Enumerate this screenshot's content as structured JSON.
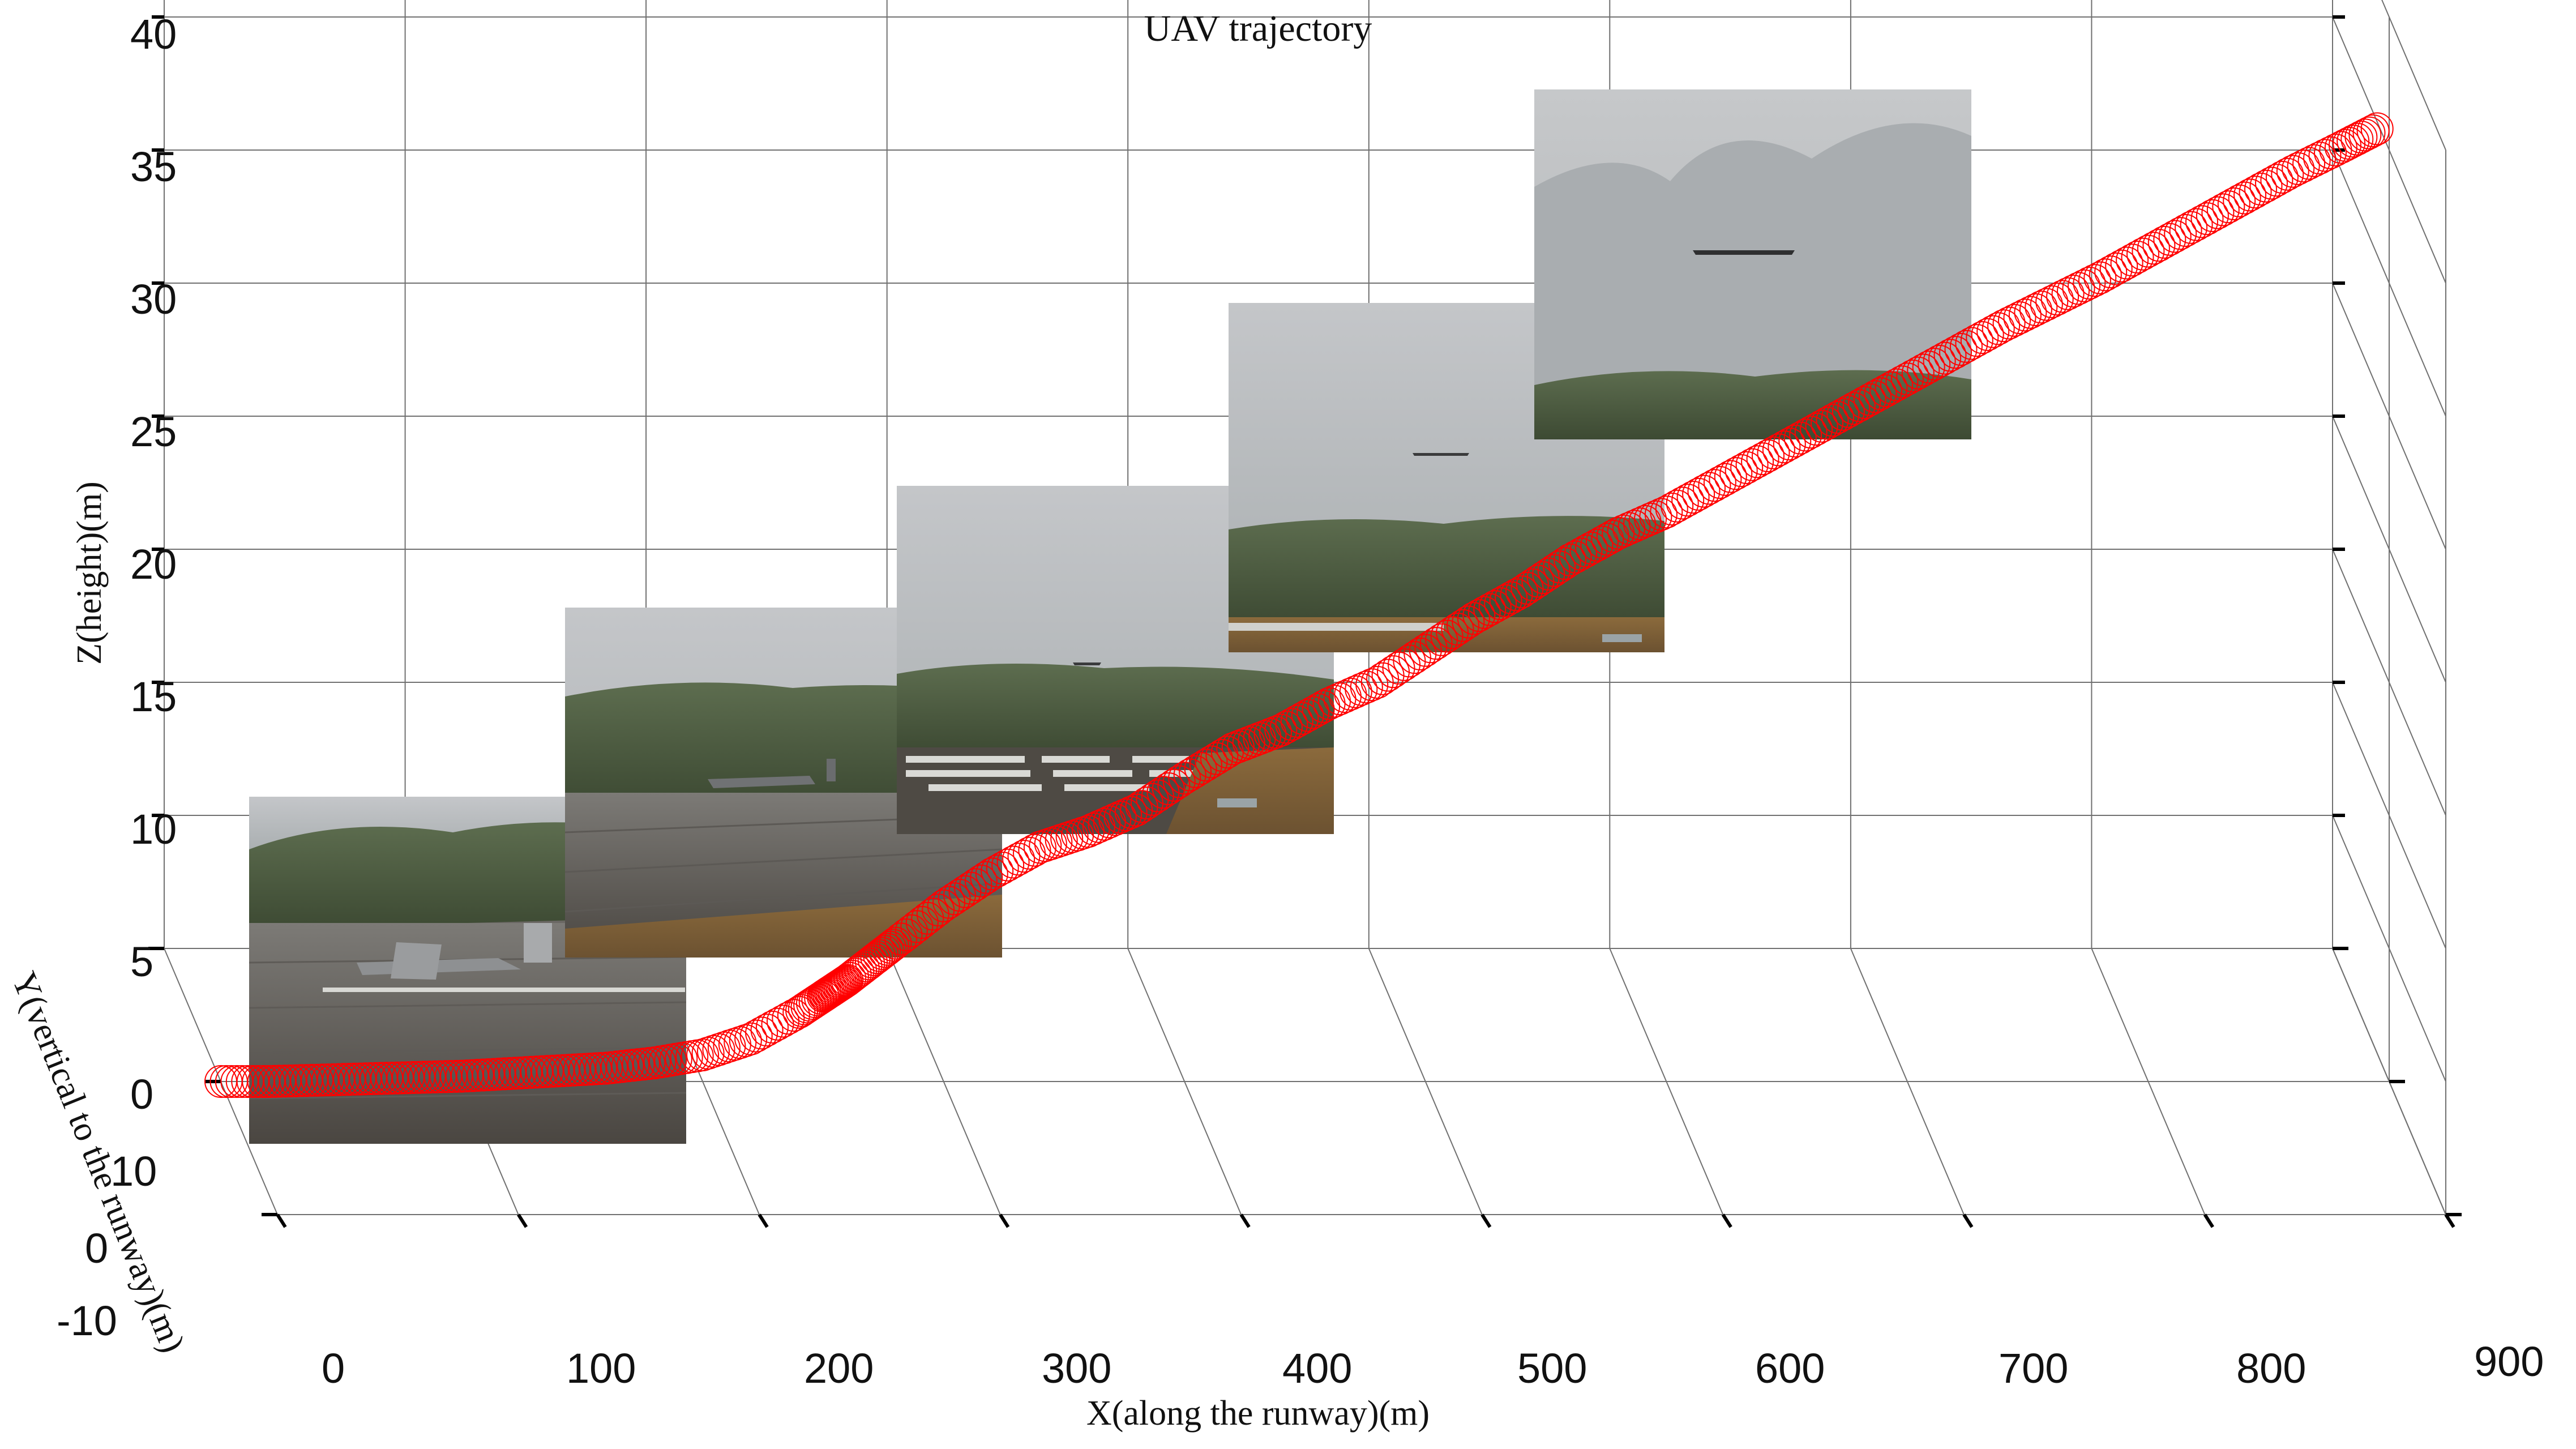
{
  "chart_data": {
    "type": "scatter",
    "projection": "3d",
    "title": "UAV trajectory",
    "xlabel": "X(along the runway)(m)",
    "ylabel": "Y(vertical to the runway)(m)",
    "zlabel": "Z(height)(m)",
    "xlim": [
      0,
      900
    ],
    "ylim": [
      -10,
      10
    ],
    "zlim": [
      0,
      40
    ],
    "x_ticks": [
      "0",
      "100",
      "200",
      "300",
      "400",
      "500",
      "600",
      "700",
      "800",
      "900"
    ],
    "y_ticks": [
      "-10",
      "0",
      "10"
    ],
    "z_ticks": [
      "0",
      "5",
      "10",
      "15",
      "20",
      "25",
      "30",
      "35",
      "40"
    ],
    "grid": true,
    "marker": "circle",
    "marker_color": "#ff0000",
    "series": [
      {
        "x": [
          0,
          20,
          40,
          60,
          80,
          100,
          120,
          140,
          160,
          180,
          200,
          220,
          240,
          250,
          255,
          260,
          270,
          280,
          300,
          320,
          340,
          360,
          380,
          400,
          420,
          440,
          460,
          480,
          500,
          520,
          540,
          560,
          580,
          600,
          620,
          640,
          660,
          680,
          700,
          720,
          740,
          760,
          780,
          800,
          820,
          840,
          860,
          880,
          895
        ],
        "y": [
          0,
          0,
          0,
          0,
          0,
          0,
          0,
          0,
          0,
          0,
          0,
          0,
          0,
          0,
          0,
          0,
          0,
          0,
          0,
          0,
          0,
          0,
          0,
          0,
          0,
          0,
          0,
          0,
          0,
          0,
          0,
          0,
          0,
          0,
          0,
          0,
          0,
          0,
          0,
          0,
          0,
          0,
          0,
          0,
          0,
          0,
          0,
          0,
          0
        ],
        "z": [
          0,
          0,
          0.05,
          0.1,
          0.15,
          0.2,
          0.3,
          0.4,
          0.5,
          0.7,
          1.0,
          1.6,
          2.6,
          3.2,
          3.5,
          3.8,
          4.5,
          5.2,
          6.6,
          7.8,
          8.8,
          9.4,
          10.2,
          11.4,
          12.5,
          13.2,
          14.2,
          15.0,
          16.2,
          17.4,
          18.4,
          19.6,
          20.6,
          21.4,
          22.4,
          23.4,
          24.4,
          25.4,
          26.4,
          27.4,
          28.4,
          29.3,
          30.2,
          31.2,
          32.2,
          33.2,
          34.2,
          35.1,
          35.8
        ]
      }
    ],
    "inset_photos": [
      "uav-on-runway",
      "uav-taxiing",
      "uav-liftoff",
      "uav-climbing",
      "uav-in-flight"
    ]
  }
}
